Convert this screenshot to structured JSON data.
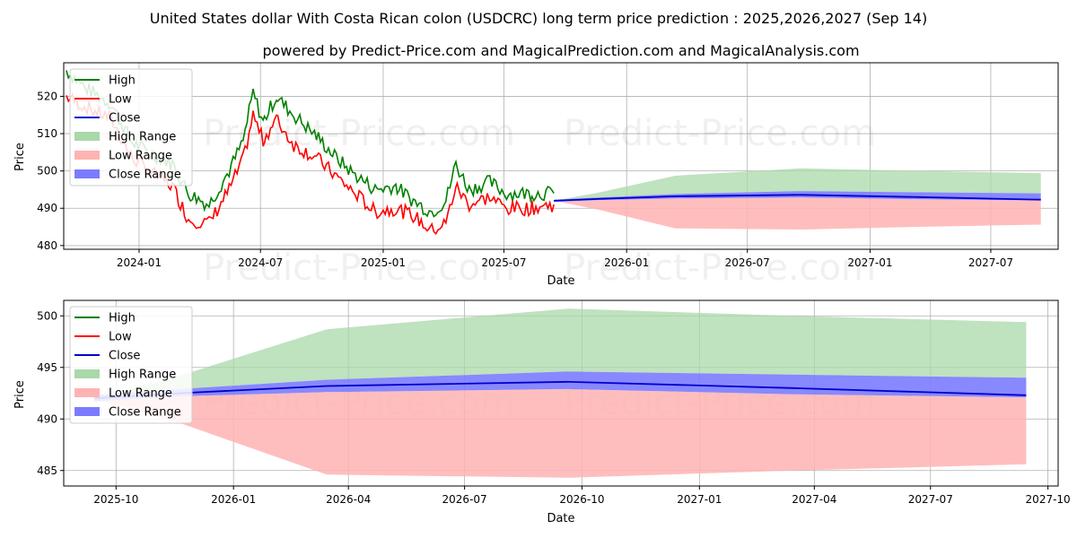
{
  "title": "United States dollar With Costa Rican colon (USDCRC) long term price prediction : 2025,2026,2027 (Sep 14)",
  "subtitle": "powered by Predict-Price.com and MagicalPrediction.com and MagicalAnalysis.com",
  "watermark": "Predict-Price.com",
  "colors": {
    "high": "#008000",
    "low": "#ff0000",
    "close": "#0000cc",
    "high_range": "#a9d8a9",
    "low_range": "#ffb3b3",
    "close_range": "#7b7bff",
    "grid": "#b0b0b0"
  },
  "legend": [
    "High",
    "Low",
    "Close",
    "High Range",
    "Low Range",
    "Close Range"
  ],
  "chart_data": [
    {
      "type": "line",
      "panel": "top",
      "xlabel": "Date",
      "ylabel": "Price",
      "xlim": [
        "2023-09-10",
        "2027-10-10"
      ],
      "ylim": [
        479,
        529
      ],
      "xticks": [
        "2024-01",
        "2024-07",
        "2025-01",
        "2025-07",
        "2026-01",
        "2026-07",
        "2027-01",
        "2027-07"
      ],
      "yticks": [
        480,
        490,
        500,
        510,
        520
      ],
      "history_anchors": [
        {
          "date": "2023-09-14",
          "high": 527,
          "low": 520
        },
        {
          "date": "2023-10-15",
          "high": 522,
          "low": 517
        },
        {
          "date": "2023-11-20",
          "high": 518,
          "low": 514
        },
        {
          "date": "2023-12-20",
          "high": 508,
          "low": 504
        },
        {
          "date": "2024-01-15",
          "high": 505,
          "low": 500
        },
        {
          "date": "2024-02-20",
          "high": 502,
          "low": 496
        },
        {
          "date": "2024-03-15",
          "high": 494,
          "low": 487
        },
        {
          "date": "2024-04-15",
          "high": 491,
          "low": 486
        },
        {
          "date": "2024-05-15",
          "high": 500,
          "low": 495
        },
        {
          "date": "2024-06-05",
          "high": 508,
          "low": 503
        },
        {
          "date": "2024-06-20",
          "high": 521,
          "low": 515
        },
        {
          "date": "2024-07-05",
          "high": 513,
          "low": 508
        },
        {
          "date": "2024-07-25",
          "high": 520,
          "low": 514
        },
        {
          "date": "2024-08-20",
          "high": 515,
          "low": 507
        },
        {
          "date": "2024-09-20",
          "high": 510,
          "low": 504
        },
        {
          "date": "2024-10-20",
          "high": 504,
          "low": 499
        },
        {
          "date": "2024-11-20",
          "high": 499,
          "low": 494
        },
        {
          "date": "2024-12-20",
          "high": 495,
          "low": 489
        },
        {
          "date": "2025-01-20",
          "high": 496,
          "low": 490
        },
        {
          "date": "2025-02-15",
          "high": 492,
          "low": 488
        },
        {
          "date": "2025-03-15",
          "high": 489,
          "low": 484
        },
        {
          "date": "2025-04-05",
          "high": 492,
          "low": 486
        },
        {
          "date": "2025-04-20",
          "high": 502,
          "low": 496
        },
        {
          "date": "2025-05-10",
          "high": 495,
          "low": 491
        },
        {
          "date": "2025-06-10",
          "high": 497,
          "low": 493
        },
        {
          "date": "2025-07-05",
          "high": 494,
          "low": 490
        },
        {
          "date": "2025-08-10",
          "high": 494,
          "low": 490
        },
        {
          "date": "2025-09-14",
          "high": 494,
          "low": 491
        }
      ],
      "forecast": {
        "dates": [
          "2025-09-14",
          "2025-11-20",
          "2026-03-15",
          "2026-09-20",
          "2027-03-15",
          "2027-09-14"
        ],
        "close": [
          492.0,
          492.5,
          493.2,
          493.6,
          493.0,
          492.3
        ],
        "high_range_upper": [
          492.0,
          494.2,
          498.7,
          500.7,
          500.0,
          499.4
        ],
        "low_range_lower": [
          492.0,
          489.6,
          484.6,
          484.3,
          485.0,
          485.6
        ],
        "close_range_upper": [
          492.3,
          492.9,
          493.8,
          494.6,
          494.3,
          494.0
        ],
        "close_range_lower": [
          491.7,
          492.2,
          492.6,
          492.9,
          492.4,
          492.1
        ]
      }
    },
    {
      "type": "line",
      "panel": "bottom",
      "xlabel": "Date",
      "ylabel": "Price",
      "xlim": [
        "2025-08-21",
        "2027-10-09"
      ],
      "ylim": [
        483.5,
        501.5
      ],
      "xticks": [
        "2025-10",
        "2026-01",
        "2026-04",
        "2026-07",
        "2026-10",
        "2027-01",
        "2027-04",
        "2027-07",
        "2027-10"
      ],
      "yticks": [
        485,
        490,
        495,
        500
      ],
      "forecast": {
        "dates": [
          "2025-09-14",
          "2025-11-20",
          "2026-03-15",
          "2026-09-20",
          "2027-03-15",
          "2027-09-14"
        ],
        "close": [
          492.0,
          492.5,
          493.2,
          493.6,
          493.0,
          492.3
        ],
        "high_range_upper": [
          492.0,
          494.2,
          498.7,
          500.7,
          500.0,
          499.4
        ],
        "low_range_lower": [
          492.0,
          489.6,
          484.6,
          484.3,
          485.0,
          485.6
        ],
        "close_range_upper": [
          492.3,
          492.9,
          493.8,
          494.6,
          494.3,
          494.0
        ],
        "close_range_lower": [
          491.7,
          492.2,
          492.6,
          492.9,
          492.4,
          492.1
        ]
      }
    }
  ]
}
